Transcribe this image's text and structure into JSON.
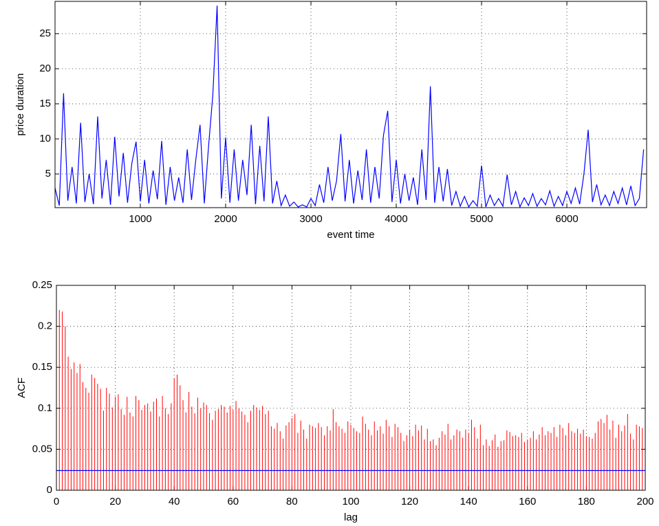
{
  "chart_data": [
    {
      "type": "line",
      "xlabel": "event time",
      "ylabel": "price duration",
      "xlim": [
        0,
        6935
      ],
      "ylim": [
        0.2,
        29.6
      ],
      "xticks": [
        1000,
        2000,
        3000,
        4000,
        5000,
        6000
      ],
      "yticks": [
        5,
        10,
        15,
        20,
        25
      ],
      "grid": true,
      "x": [
        0,
        50,
        100,
        150,
        200,
        250,
        300,
        350,
        400,
        450,
        500,
        550,
        600,
        650,
        700,
        750,
        800,
        850,
        900,
        950,
        1000,
        1050,
        1100,
        1150,
        1200,
        1250,
        1300,
        1350,
        1400,
        1450,
        1500,
        1550,
        1600,
        1650,
        1700,
        1750,
        1800,
        1850,
        1900,
        1950,
        2000,
        2050,
        2100,
        2150,
        2200,
        2250,
        2300,
        2350,
        2400,
        2450,
        2500,
        2550,
        2600,
        2650,
        2700,
        2750,
        2800,
        2850,
        2900,
        2950,
        3000,
        3050,
        3100,
        3150,
        3200,
        3250,
        3300,
        3350,
        3400,
        3450,
        3500,
        3550,
        3600,
        3650,
        3700,
        3750,
        3800,
        3850,
        3900,
        3950,
        4000,
        4050,
        4100,
        4150,
        4200,
        4250,
        4300,
        4350,
        4400,
        4450,
        4500,
        4550,
        4600,
        4650,
        4700,
        4750,
        4800,
        4850,
        4900,
        4950,
        5000,
        5050,
        5100,
        5150,
        5200,
        5250,
        5300,
        5350,
        5400,
        5450,
        5500,
        5550,
        5600,
        5650,
        5700,
        5750,
        5800,
        5850,
        5900,
        5950,
        6000,
        6050,
        6100,
        6150,
        6200,
        6250,
        6300,
        6350,
        6400,
        6450,
        6500,
        6550,
        6600,
        6650,
        6700,
        6750,
        6800,
        6850,
        6900
      ],
      "series": [
        {
          "color": "#0000ff",
          "values": [
            3,
            0.5,
            16.5,
            1.2,
            6,
            0.8,
            12.3,
            1,
            5,
            0.7,
            13.2,
            1.5,
            7,
            0.6,
            10.3,
            1.8,
            8,
            0.9,
            6.5,
            9.6,
            1.1,
            7,
            0.8,
            5.5,
            1.4,
            9.7,
            0.6,
            6,
            1.2,
            4.5,
            0.9,
            8.5,
            1.3,
            7,
            12,
            0.8,
            9,
            16.3,
            29,
            1.5,
            10.2,
            0.9,
            8.5,
            1.2,
            7,
            2,
            12,
            0.7,
            9,
            1.1,
            13.2,
            0.8,
            4,
            0.5,
            2,
            0.4,
            1,
            0.3,
            0.6,
            0.3,
            1.5,
            0.5,
            3.5,
            0.9,
            6,
            1.2,
            4,
            10.7,
            1.1,
            7,
            0.8,
            5.5,
            1.3,
            8.5,
            0.9,
            6,
            1.5,
            10.5,
            14,
            1,
            7,
            0.8,
            5,
            1.2,
            4.5,
            0.6,
            8.5,
            1.3,
            17.5,
            0.9,
            6,
            1.1,
            5.7,
            0.5,
            2.5,
            0.4,
            1.8,
            0.3,
            1.2,
            0.4,
            6.2,
            0.3,
            2,
            0.5,
            1.5,
            0.4,
            4.9,
            0.6,
            2.5,
            0.3,
            1.6,
            0.5,
            2.2,
            0.4,
            1.5,
            0.6,
            2.6,
            0.4,
            1.8,
            0.5,
            2.5,
            0.8,
            3,
            0.7,
            5,
            11.3,
            1,
            3.5,
            0.6,
            2,
            0.5,
            2.5,
            0.8,
            3,
            0.6,
            3.3,
            0.5,
            1.5,
            8.5
          ]
        }
      ]
    },
    {
      "type": "stem",
      "xlabel": "lag",
      "ylabel": "ACF",
      "xlim": [
        0,
        200
      ],
      "ylim": [
        0,
        0.25
      ],
      "xticks": [
        0,
        20,
        40,
        60,
        80,
        100,
        120,
        140,
        160,
        180,
        200
      ],
      "yticks": [
        0,
        0.05,
        0.1,
        0.15,
        0.2,
        0.25
      ],
      "grid": true,
      "color": "#ff0000",
      "hline": 0.024,
      "hline_color": "#0000ff",
      "x": [
        1,
        2,
        3,
        4,
        5,
        6,
        7,
        8,
        9,
        10,
        11,
        12,
        13,
        14,
        15,
        16,
        17,
        18,
        19,
        20,
        21,
        22,
        23,
        24,
        25,
        26,
        27,
        28,
        29,
        30,
        31,
        32,
        33,
        34,
        35,
        36,
        37,
        38,
        39,
        40,
        41,
        42,
        43,
        44,
        45,
        46,
        47,
        48,
        49,
        50,
        51,
        52,
        53,
        54,
        55,
        56,
        57,
        58,
        59,
        60,
        61,
        62,
        63,
        64,
        65,
        66,
        67,
        68,
        69,
        70,
        71,
        72,
        73,
        74,
        75,
        76,
        77,
        78,
        79,
        80,
        81,
        82,
        83,
        84,
        85,
        86,
        87,
        88,
        89,
        90,
        91,
        92,
        93,
        94,
        95,
        96,
        97,
        98,
        99,
        100,
        101,
        102,
        103,
        104,
        105,
        106,
        107,
        108,
        109,
        110,
        111,
        112,
        113,
        114,
        115,
        116,
        117,
        118,
        119,
        120,
        121,
        122,
        123,
        124,
        125,
        126,
        127,
        128,
        129,
        130,
        131,
        132,
        133,
        134,
        135,
        136,
        137,
        138,
        139,
        140,
        141,
        142,
        143,
        144,
        145,
        146,
        147,
        148,
        149,
        150,
        151,
        152,
        153,
        154,
        155,
        156,
        157,
        158,
        159,
        160,
        161,
        162,
        163,
        164,
        165,
        166,
        167,
        168,
        169,
        170,
        171,
        172,
        173,
        174,
        175,
        176,
        177,
        178,
        179,
        180,
        181,
        182,
        183,
        184,
        185,
        186,
        187,
        188,
        189,
        190,
        191,
        192,
        193,
        194,
        195,
        196,
        197,
        198,
        199,
        200
      ],
      "values": [
        0.22,
        0.218,
        0.2,
        0.163,
        0.148,
        0.156,
        0.143,
        0.154,
        0.132,
        0.125,
        0.119,
        0.141,
        0.137,
        0.13,
        0.124,
        0.097,
        0.125,
        0.118,
        0.101,
        0.114,
        0.117,
        0.099,
        0.092,
        0.114,
        0.095,
        0.09,
        0.115,
        0.11,
        0.098,
        0.104,
        0.106,
        0.096,
        0.108,
        0.112,
        0.09,
        0.115,
        0.1,
        0.093,
        0.106,
        0.137,
        0.141,
        0.128,
        0.11,
        0.095,
        0.12,
        0.102,
        0.094,
        0.113,
        0.1,
        0.107,
        0.104,
        0.094,
        0.086,
        0.097,
        0.099,
        0.104,
        0.102,
        0.095,
        0.103,
        0.098,
        0.109,
        0.1,
        0.096,
        0.092,
        0.083,
        0.097,
        0.104,
        0.101,
        0.098,
        0.103,
        0.093,
        0.097,
        0.078,
        0.075,
        0.082,
        0.072,
        0.063,
        0.079,
        0.083,
        0.088,
        0.093,
        0.07,
        0.085,
        0.074,
        0.063,
        0.08,
        0.078,
        0.076,
        0.082,
        0.077,
        0.067,
        0.078,
        0.073,
        0.099,
        0.083,
        0.078,
        0.075,
        0.07,
        0.084,
        0.08,
        0.076,
        0.072,
        0.07,
        0.09,
        0.081,
        0.074,
        0.067,
        0.084,
        0.073,
        0.078,
        0.069,
        0.086,
        0.078,
        0.065,
        0.081,
        0.077,
        0.07,
        0.06,
        0.067,
        0.074,
        0.066,
        0.08,
        0.073,
        0.079,
        0.062,
        0.075,
        0.06,
        0.062,
        0.055,
        0.064,
        0.072,
        0.068,
        0.081,
        0.062,
        0.067,
        0.074,
        0.072,
        0.064,
        0.074,
        0.07,
        0.086,
        0.077,
        0.063,
        0.08,
        0.055,
        0.062,
        0.054,
        0.061,
        0.068,
        0.053,
        0.06,
        0.061,
        0.073,
        0.071,
        0.066,
        0.067,
        0.065,
        0.07,
        0.059,
        0.062,
        0.064,
        0.072,
        0.062,
        0.068,
        0.077,
        0.067,
        0.072,
        0.07,
        0.077,
        0.065,
        0.08,
        0.076,
        0.067,
        0.082,
        0.072,
        0.07,
        0.075,
        0.069,
        0.074,
        0.066,
        0.065,
        0.063,
        0.07,
        0.084,
        0.087,
        0.082,
        0.092,
        0.074,
        0.085,
        0.064,
        0.08,
        0.072,
        0.079,
        0.093,
        0.069,
        0.062,
        0.08,
        0.078,
        0.076,
        0.072
      ]
    }
  ]
}
